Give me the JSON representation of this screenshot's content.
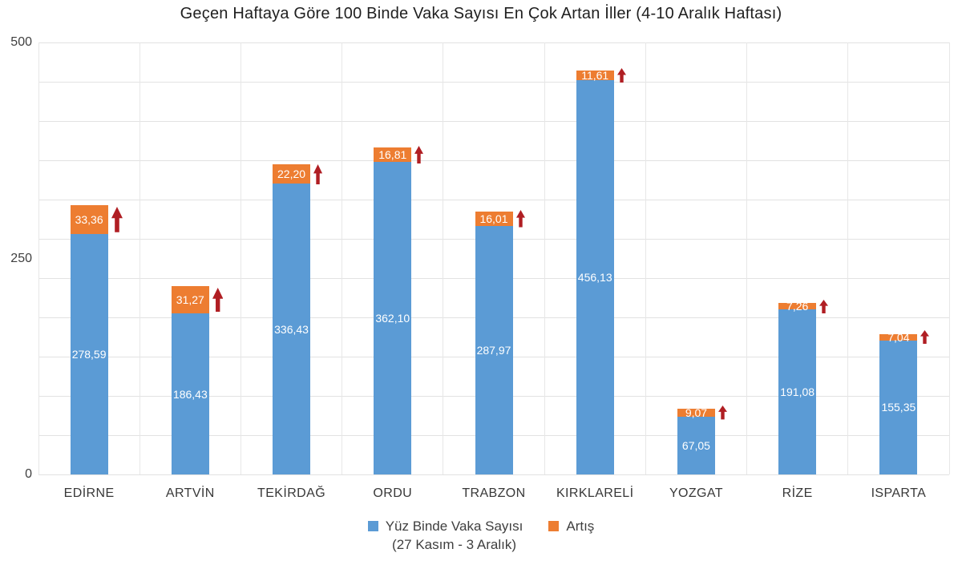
{
  "title": "Geçen Haftaya Göre 100 Binde Vaka Sayısı En Çok Artan İller (4-10 Aralık Haftası)",
  "colors": {
    "bar_blue": "#5B9BD5",
    "bar_orange": "#ED7D31",
    "arrow_red": "#B01E23",
    "gridline": "#E2E2E2",
    "value_label": "#FFFFFF",
    "axis_text": "#3F3F3F"
  },
  "y_axis": {
    "ticks": [
      {
        "label": "500",
        "value": 500
      },
      {
        "label": "250",
        "value": 250
      },
      {
        "label": "0",
        "value": 0
      }
    ]
  },
  "legend": {
    "series1_label": "Yüz Binde Vaka Sayısı",
    "series1_sublabel": "(27 Kasım - 3 Aralık)",
    "series2_label": "Artış"
  },
  "chart_data": {
    "type": "bar",
    "stacked": true,
    "title": "Geçen Haftaya Göre 100 Binde Vaka Sayısı En Çok Artan İller (4-10 Aralık Haftası)",
    "categories": [
      "EDİRNE",
      "ARTVİN",
      "TEKİRDAĞ",
      "ORDU",
      "TRABZON",
      "KIRKLARELİ",
      "YOZGAT",
      "RİZE",
      "ISPARTA"
    ],
    "series": [
      {
        "name": "Yüz Binde Vaka Sayısı (27 Kasım - 3 Aralık)",
        "values": [
          278.59,
          186.43,
          336.43,
          362.1,
          287.97,
          456.13,
          67.05,
          191.08,
          155.35
        ]
      },
      {
        "name": "Artış",
        "values": [
          33.36,
          31.27,
          22.2,
          16.81,
          16.01,
          11.61,
          9.07,
          7.26,
          7.04
        ]
      }
    ],
    "value_labels": {
      "base": [
        "278,59",
        "186,43",
        "336,43",
        "362,10",
        "287,97",
        "456,13",
        "67,05",
        "191,08",
        "155,35"
      ],
      "increase": [
        "33,36",
        "31,27",
        "22,20",
        "16,81",
        "16,01",
        "11,61",
        "9,07",
        "7,26",
        "7,04"
      ]
    },
    "ylim": [
      0,
      500
    ],
    "grid": {
      "visible": true,
      "horizontal_divisions": 11,
      "vertical_divisions": 9
    },
    "legend_position": "bottom",
    "annotations": "dark-red up arrow beside each Artış segment"
  }
}
